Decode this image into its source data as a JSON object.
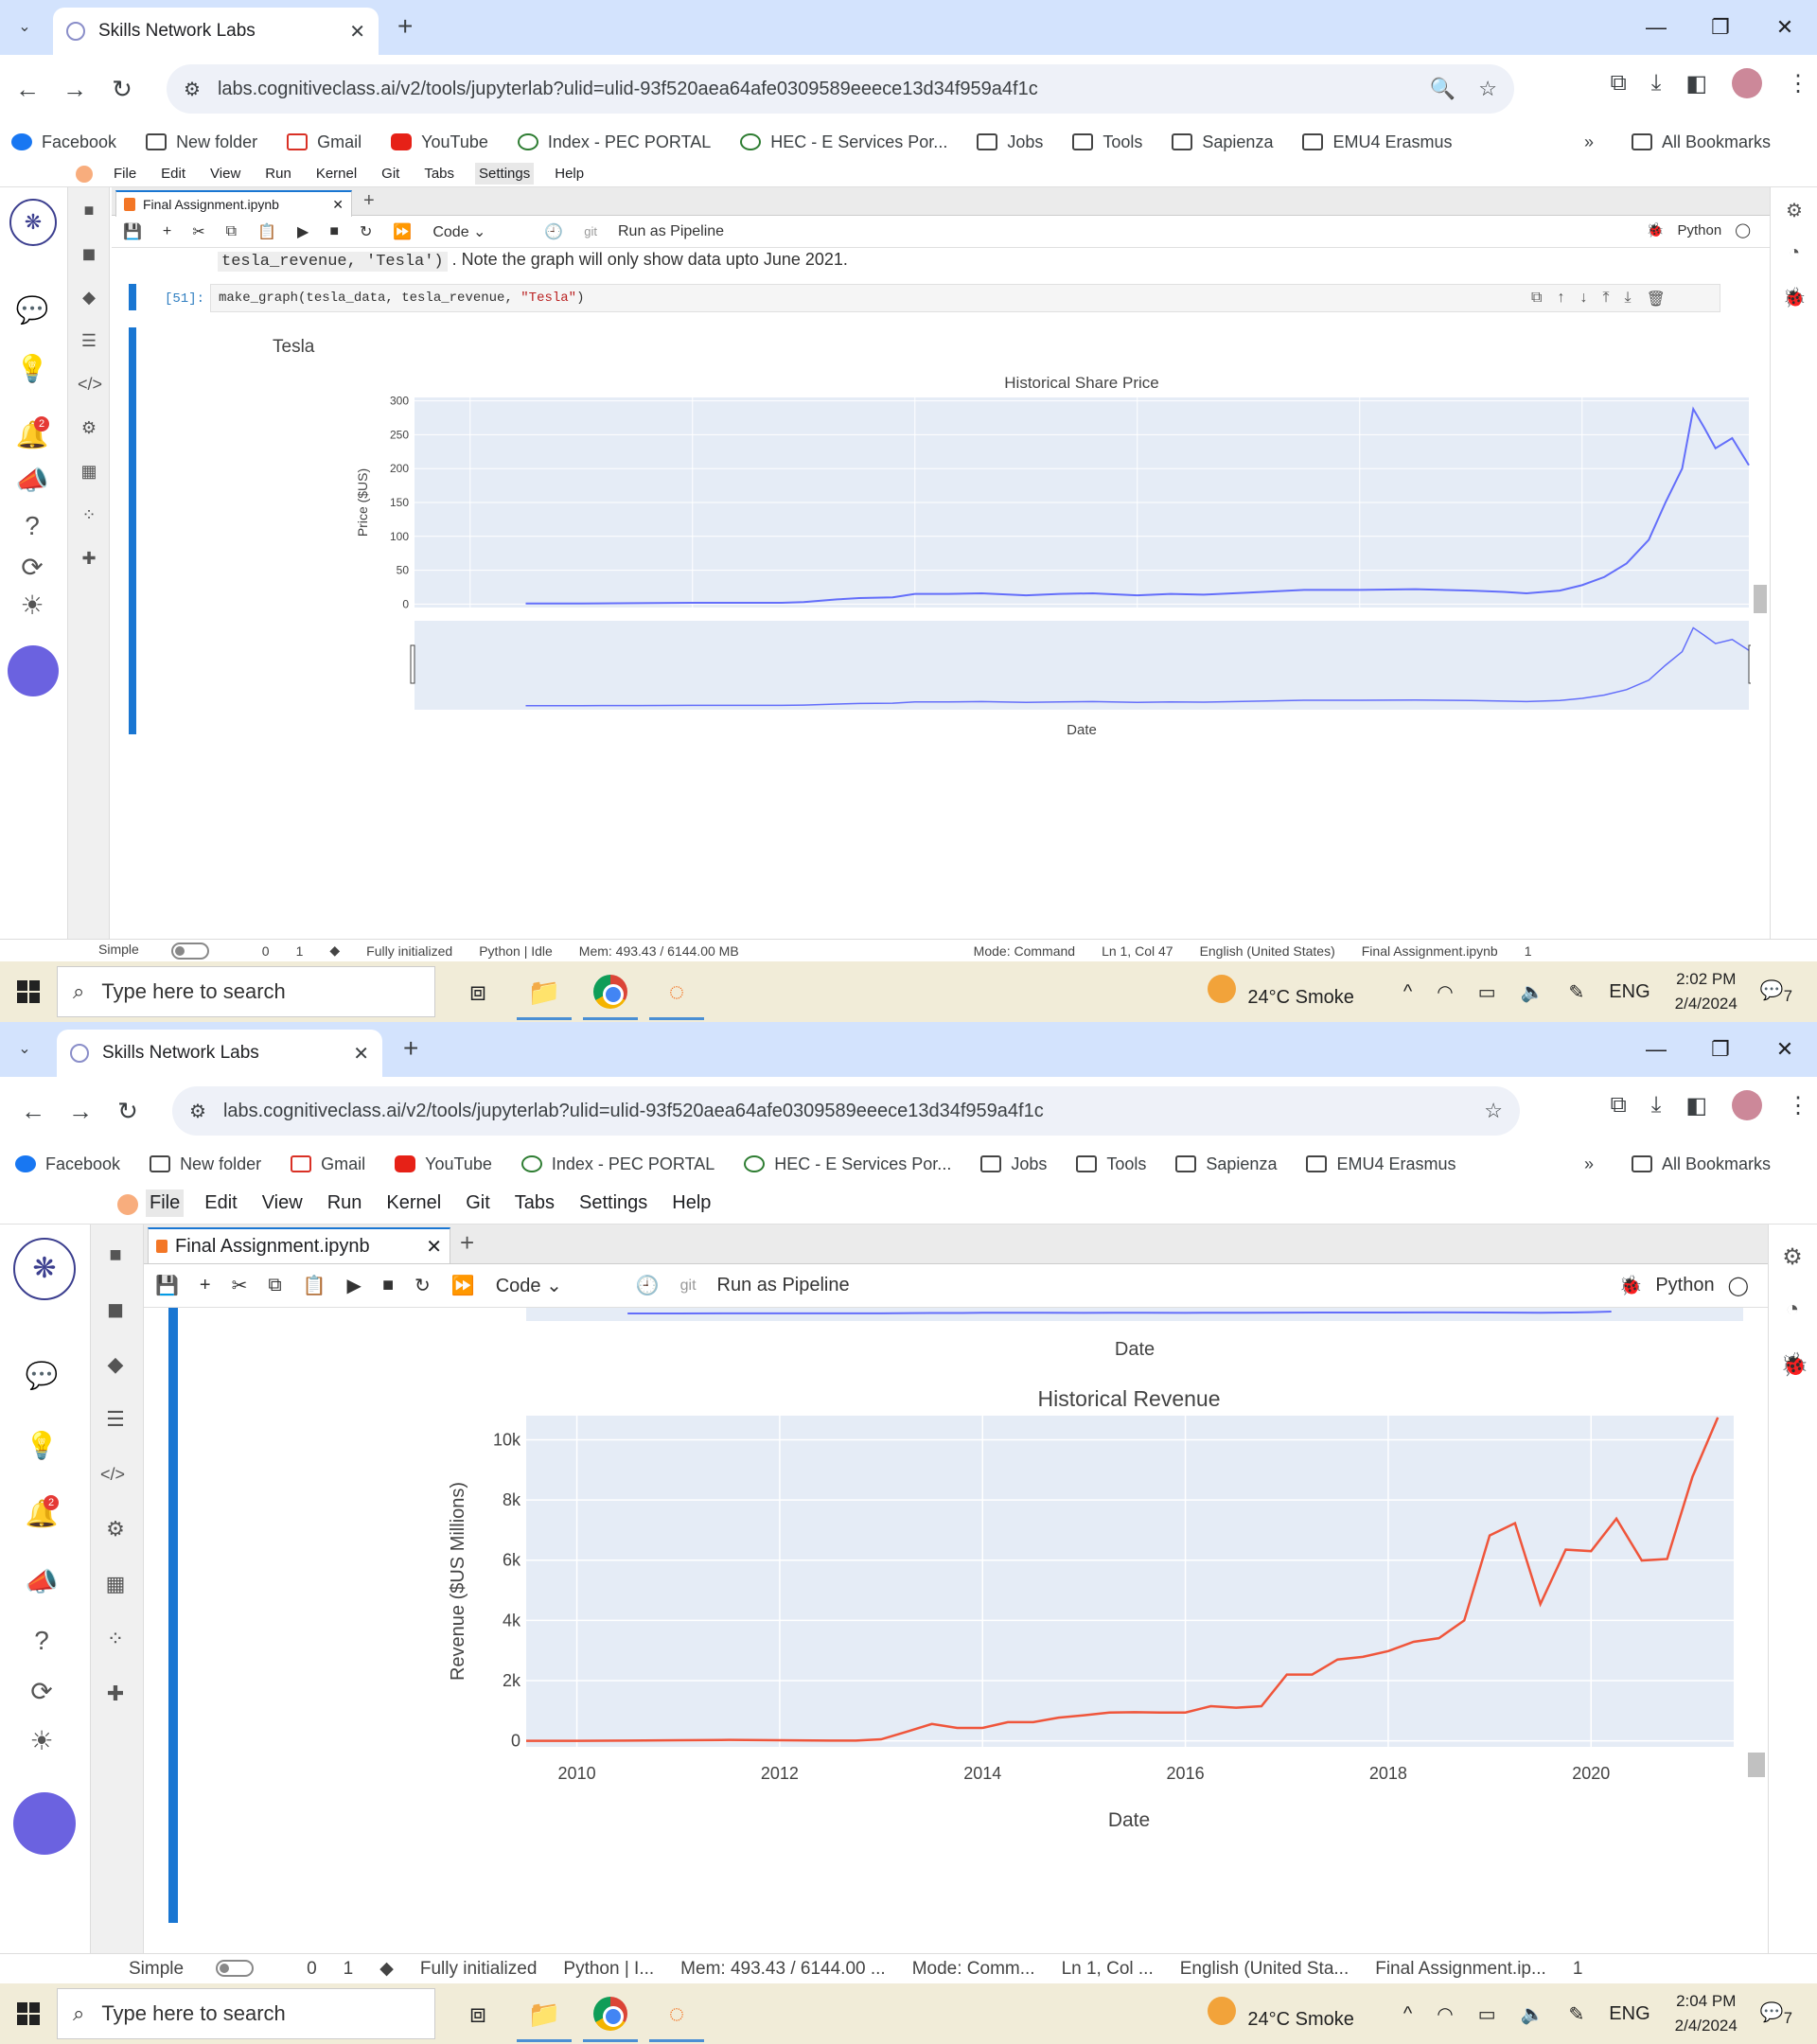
{
  "browser": {
    "tab_title": "Skills Network Labs",
    "url": "labs.cognitiveclass.ai/v2/tools/jupyterlab?ulid=ulid-93f520aea64afe0309589eeece13d34f959a4f1c",
    "bookmarks": [
      "Facebook",
      "New folder",
      "Gmail",
      "YouTube",
      "Index - PEC PORTAL",
      "HEC - E Services Por...",
      "Jobs",
      "Tools",
      "Sapienza",
      "EMU4 Erasmus"
    ],
    "all_bookmarks": "All Bookmarks",
    "more": "»"
  },
  "jupyter": {
    "menu": [
      "File",
      "Edit",
      "View",
      "Run",
      "Kernel",
      "Git",
      "Tabs",
      "Settings",
      "Help"
    ],
    "doc_tab": "Final Assignment.ipynb",
    "cell_type": "Code",
    "git_label": "git",
    "run_pipeline": "Run as Pipeline",
    "kernel_name": "Python",
    "notification_count": "2"
  },
  "notebook": {
    "md_code": "tesla_revenue, 'Tesla')",
    "md_text": ". Note the graph will only show data upto June 2021.",
    "prompt": "[51]:",
    "cell_code_fn": "make_graph(tesla_data, tesla_revenue, ",
    "cell_code_str": "\"Tesla\"",
    "cell_code_end": ")"
  },
  "status1": {
    "mode_label": "Simple",
    "zero": "0",
    "one": "1",
    "init": "Fully initialized",
    "kernel": "Python | Idle",
    "mem": "Mem: 493.43 / 6144.00 MB",
    "mode": "Mode: Command",
    "cursor": "Ln 1, Col 47",
    "lang": "English (United States)",
    "file": "Final Assignment.ipynb",
    "count": "1"
  },
  "status2": {
    "mode_label": "Simple",
    "zero": "0",
    "one": "1",
    "init": "Fully initialized",
    "kernel": "Python | I...",
    "mem": "Mem: 493.43 / 6144.00 ...",
    "mode": "Mode: Comm...",
    "cursor": "Ln 1, Col ...",
    "lang": "English (United Sta...",
    "file": "Final Assignment.ip...",
    "count": "1"
  },
  "taskbar": {
    "search_placeholder": "Type here to search",
    "weather": "24°C  Smoke",
    "lang": "ENG",
    "time1": "2:02 PM",
    "date1": "2/4/2024",
    "time2": "2:04 PM",
    "date2": "2/4/2024",
    "notif": "7"
  },
  "chart_data": [
    {
      "type": "line",
      "suptitle": "Tesla",
      "title": "Historical Share Price",
      "ylabel": "Price ($US)",
      "xlabel": "Date",
      "color": "#636efa",
      "ylim": [
        -5,
        305
      ],
      "yticks": [
        0,
        50,
        100,
        150,
        200,
        250,
        300
      ],
      "x": [
        2010.5,
        2011.0,
        2011.5,
        2012.0,
        2012.5,
        2012.8,
        2013.0,
        2013.3,
        2013.5,
        2013.8,
        2014.0,
        2014.3,
        2014.6,
        2015.0,
        2015.3,
        2015.6,
        2016.0,
        2016.3,
        2016.6,
        2017.0,
        2017.5,
        2018.0,
        2018.5,
        2019.0,
        2019.3,
        2019.5,
        2019.8,
        2020.0,
        2020.2,
        2020.4,
        2020.6,
        2020.75,
        2020.9,
        2021.0,
        2021.1,
        2021.2,
        2021.35,
        2021.5
      ],
      "y": [
        1,
        1,
        1.5,
        2,
        2,
        2,
        3,
        7,
        9,
        10,
        15,
        15,
        16,
        13,
        15,
        16,
        13,
        15,
        14,
        17,
        21,
        21,
        22,
        20,
        18,
        16,
        20,
        28,
        40,
        60,
        95,
        150,
        200,
        288,
        260,
        230,
        245,
        205
      ]
    },
    {
      "type": "line",
      "title": "Historical Revenue",
      "ylabel": "Revenue ($US Millions)",
      "xlabel": "Date",
      "color": "#ef553b",
      "ylim": [
        -200,
        10800
      ],
      "yticks": [
        0,
        2000,
        4000,
        6000,
        8000,
        10000
      ],
      "ytick_labels": [
        "0",
        "2k",
        "4k",
        "6k",
        "8k",
        "10k"
      ],
      "xlim": [
        2009.5,
        2021.5
      ],
      "xticks": [
        2010,
        2012,
        2014,
        2016,
        2018,
        2020
      ],
      "x": [
        2009.5,
        2010.0,
        2010.5,
        2011.0,
        2011.5,
        2012.0,
        2012.5,
        2012.75,
        2013.0,
        2013.25,
        2013.5,
        2013.75,
        2014.0,
        2014.25,
        2014.5,
        2014.75,
        2015.0,
        2015.25,
        2015.5,
        2015.75,
        2016.0,
        2016.25,
        2016.5,
        2016.75,
        2017.0,
        2017.25,
        2017.5,
        2017.75,
        2018.0,
        2018.25,
        2018.5,
        2018.75,
        2019.0,
        2019.25,
        2019.5,
        2019.75,
        2020.0,
        2020.25,
        2020.5,
        2020.75,
        2021.0,
        2021.25
      ],
      "y": [
        0,
        0,
        10,
        20,
        30,
        20,
        10,
        10,
        50,
        300,
        560,
        430,
        430,
        620,
        620,
        770,
        850,
        940,
        950,
        940,
        940,
        1150,
        1100,
        1150,
        2200,
        2200,
        2700,
        2790,
        2980,
        3290,
        3410,
        4000,
        6820,
        7230,
        4540,
        6350,
        6300,
        7380,
        5990,
        6040,
        8770,
        10740
      ]
    }
  ]
}
